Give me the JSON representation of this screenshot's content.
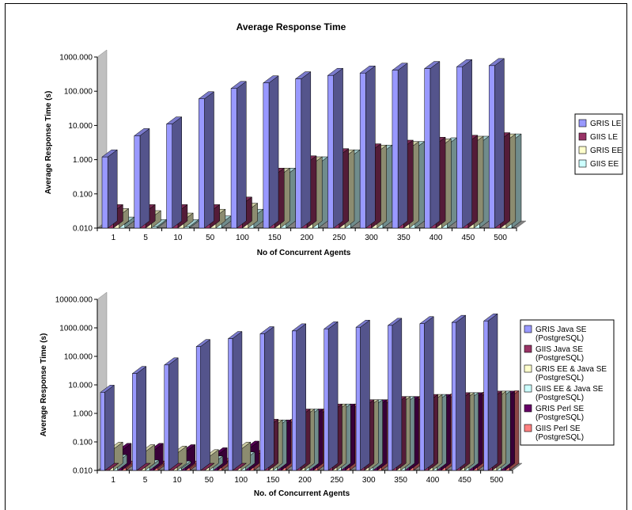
{
  "chart_data": [
    {
      "type": "bar",
      "title": "Average Response Time",
      "xlabel": "No of Concurrent Agents",
      "ylabel": "Average Response Time (s)",
      "yscale": "log",
      "ylim": [
        0.01,
        1000
      ],
      "ytick_labels": [
        "1000.000",
        "100.000",
        "10.000",
        "1.000",
        "0.100",
        "0.010"
      ],
      "categories": [
        "1",
        "5",
        "10",
        "50",
        "100",
        "150",
        "200",
        "250",
        "300",
        "350",
        "400",
        "450",
        "500"
      ],
      "legend_position": "right",
      "series": [
        {
          "name": "GRIS LE",
          "color": "#9999ff",
          "values": [
            1.2,
            5,
            11,
            60,
            120,
            175,
            230,
            290,
            340,
            410,
            460,
            520,
            560
          ]
        },
        {
          "name": "GIIS LE",
          "color": "#993366",
          "values": [
            0.03,
            0.03,
            0.03,
            0.03,
            0.05,
            0.35,
            0.8,
            1.3,
            1.8,
            2.3,
            2.8,
            3.2,
            3.8
          ]
        },
        {
          "name": "GRIS EE",
          "color": "#ffffcc",
          "values": [
            0.023,
            0.02,
            0.017,
            0.022,
            0.033,
            0.35,
            0.75,
            1.2,
            1.65,
            2.1,
            2.5,
            3.0,
            3.5
          ]
        },
        {
          "name": "GIIS EE",
          "color": "#ccffff",
          "values": [
            0.013,
            0.011,
            0.011,
            0.014,
            0.022,
            0.35,
            0.75,
            1.2,
            1.65,
            2.1,
            2.7,
            3.0,
            3.5
          ]
        }
      ]
    },
    {
      "type": "bar",
      "title": "",
      "xlabel": "No. of Concurrent Agents",
      "ylabel": "Average Response Time (s)",
      "yscale": "log",
      "ylim": [
        0.01,
        10000
      ],
      "ytick_labels": [
        "10000.000",
        "1000.000",
        "100.000",
        "10.000",
        "1.000",
        "0.100",
        "0.010"
      ],
      "categories": [
        "1",
        "5",
        "10",
        "50",
        "100",
        "150",
        "200",
        "250",
        "300",
        "350",
        "400",
        "450",
        "500"
      ],
      "legend_position": "right",
      "series": [
        {
          "name": "GRIS Java SE (PostgreSQL)",
          "legend_lines": [
            "GRIS Java SE",
            "(PostgreSQL)"
          ],
          "color": "#9999ff",
          "values": [
            5.5,
            25,
            50,
            220,
            420,
            620,
            780,
            920,
            1050,
            1220,
            1400,
            1550,
            1750
          ]
        },
        {
          "name": "GIIS Java SE (PostgreSQL)",
          "legend_lines": [
            "GIIS Java SE",
            "(PostgreSQL)"
          ],
          "color": "#993366",
          "values": [
            0.01,
            0.01,
            0.01,
            0.01,
            0.01,
            0.35,
            0.8,
            1.2,
            1.7,
            2.2,
            2.6,
            3.0,
            3.4
          ]
        },
        {
          "name": "GRIS EE & Java SE (PostgreSQL)",
          "legend_lines": [
            "GRIS EE & Java SE",
            "(PostgreSQL)"
          ],
          "color": "#ffffcc",
          "values": [
            0.055,
            0.045,
            0.04,
            0.03,
            0.055,
            0.33,
            0.8,
            1.2,
            1.7,
            2.2,
            2.6,
            3.0,
            3.4
          ]
        },
        {
          "name": "GIIS EE & Java SE (PostgreSQL)",
          "legend_lines": [
            "GIIS EE & Java SE",
            "(PostgreSQL)"
          ],
          "color": "#ccffff",
          "values": [
            0.02,
            0.013,
            0.012,
            0.018,
            0.025,
            0.33,
            0.8,
            1.2,
            1.7,
            2.2,
            2.6,
            3.0,
            3.4
          ]
        },
        {
          "name": "GRIS Perl SE (PostgreSQL)",
          "legend_lines": [
            "GRIS Perl SE",
            "(PostgreSQL)"
          ],
          "color": "#660066",
          "values": [
            0.05,
            0.05,
            0.045,
            0.035,
            0.06,
            0.33,
            0.8,
            1.2,
            1.7,
            2.2,
            2.6,
            3.0,
            3.4
          ]
        },
        {
          "name": "GIIS Perl SE (PostgreSQL)",
          "legend_lines": [
            "GIIS Perl SE",
            "(PostgreSQL)"
          ],
          "color": "#ff8080",
          "values": [
            0.012,
            0.012,
            0.012,
            0.015,
            0.028,
            0.35,
            0.8,
            1.2,
            1.7,
            2.2,
            2.7,
            3.1,
            3.5
          ]
        }
      ]
    }
  ]
}
